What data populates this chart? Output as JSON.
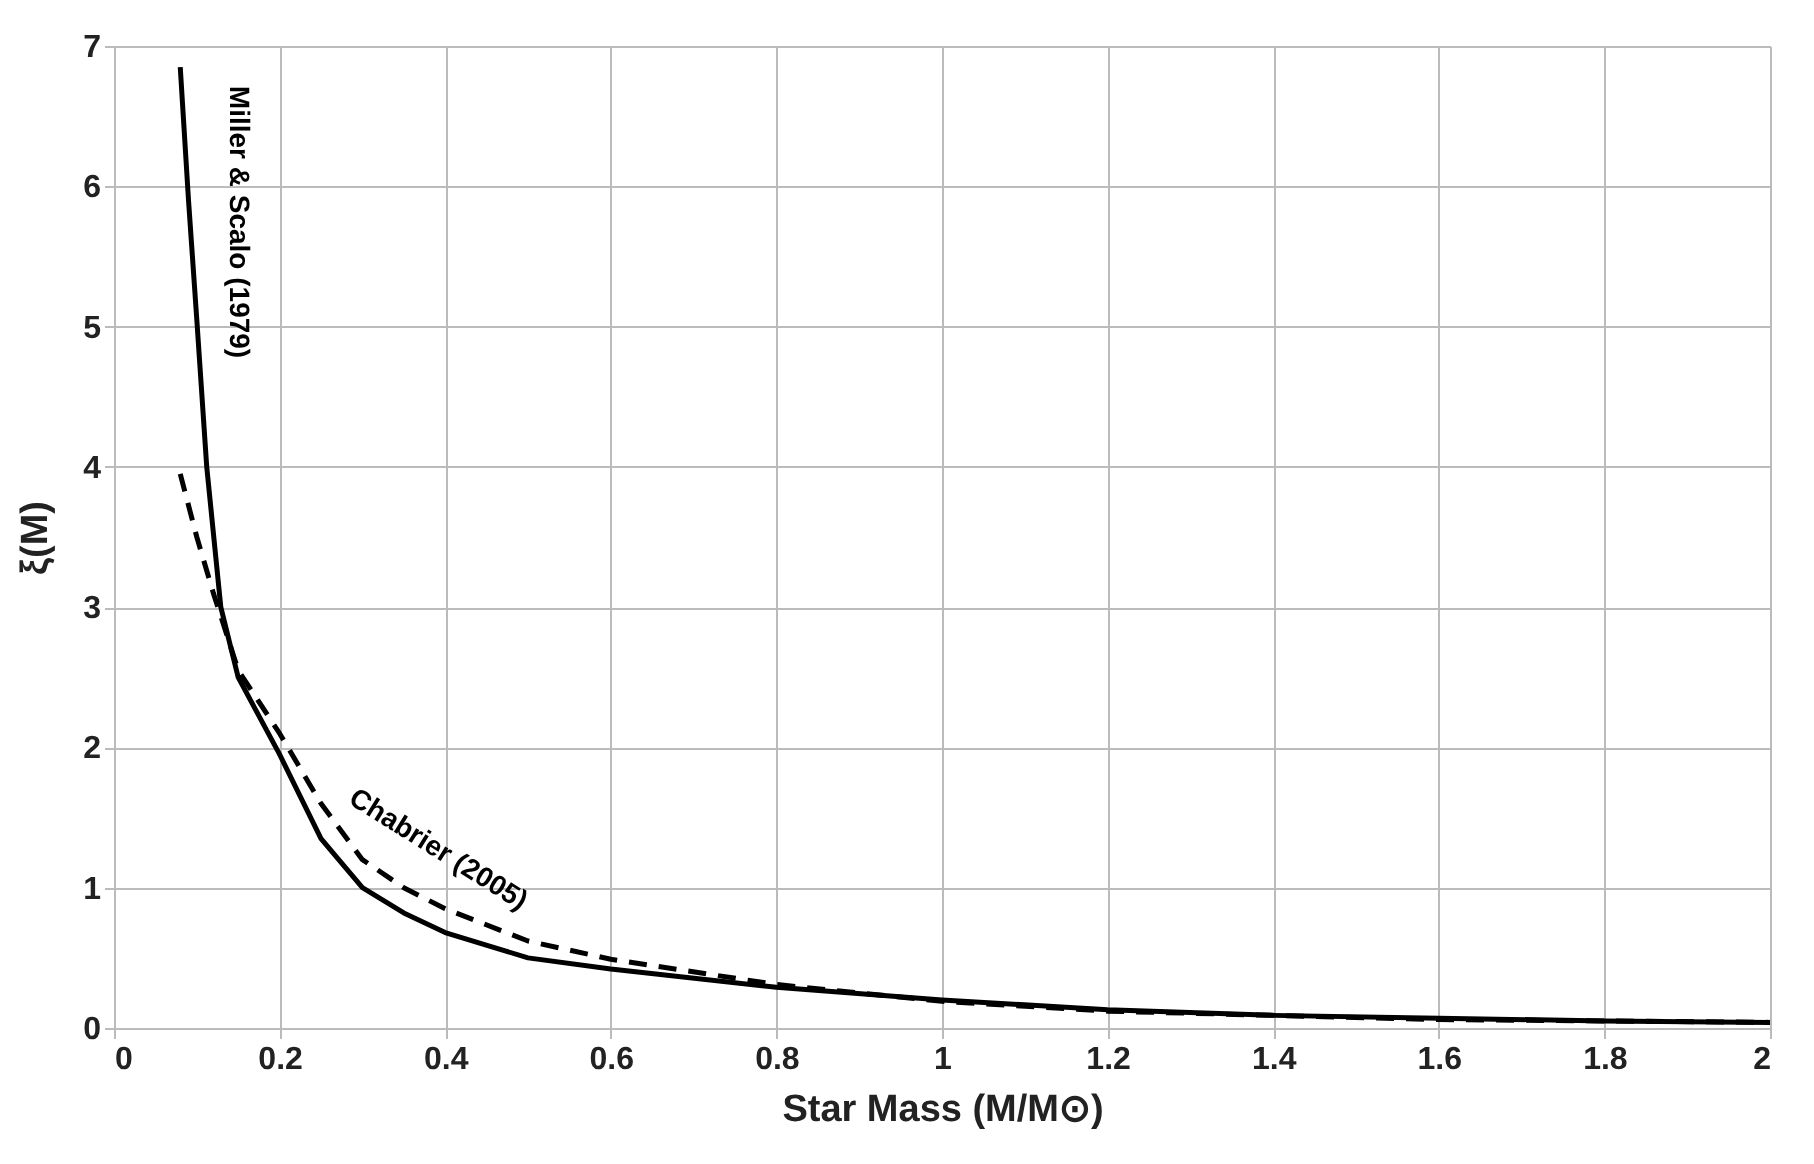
{
  "chart_data": {
    "type": "line",
    "xlabel": "Star Mass (M/M⊙)",
    "ylabel": "ξ(M)",
    "xlim": [
      0,
      2
    ],
    "xticks": [
      0,
      0.2,
      0.4,
      0.6,
      0.8,
      1,
      1.2,
      1.4,
      1.6,
      1.8,
      2
    ],
    "ylim": [
      0,
      7
    ],
    "yticks": [
      0,
      1,
      2,
      3,
      4,
      5,
      6,
      7
    ],
    "grid": true,
    "legend": false,
    "marker": "none",
    "series": [
      {
        "name": "Miller & Scalo (1979)",
        "color": "#000000",
        "line_style": "solid",
        "x": [
          0.08,
          0.09,
          0.1,
          0.112,
          0.129,
          0.15,
          0.2,
          0.25,
          0.3,
          0.35,
          0.4,
          0.5,
          0.6,
          0.8,
          1.0,
          1.2,
          1.4,
          1.6,
          1.8,
          2.0
        ],
        "values": [
          6.85,
          5.9,
          5.05,
          4.0,
          3.0,
          2.5,
          1.95,
          1.35,
          1.0,
          0.82,
          0.68,
          0.5,
          0.42,
          0.29,
          0.2,
          0.13,
          0.09,
          0.07,
          0.05,
          0.04
        ]
      },
      {
        "name": "Chabrier (2005)",
        "color": "#000000",
        "line_style": "dashed",
        "x": [
          0.08,
          0.1,
          0.12,
          0.15,
          0.2,
          0.25,
          0.3,
          0.35,
          0.4,
          0.5,
          0.6,
          0.8,
          1.0,
          1.2,
          1.4,
          1.6,
          1.8,
          2.0
        ],
        "values": [
          3.95,
          3.5,
          3.1,
          2.55,
          2.1,
          1.6,
          1.2,
          1.0,
          0.85,
          0.62,
          0.49,
          0.31,
          0.19,
          0.12,
          0.09,
          0.06,
          0.05,
          0.04
        ]
      }
    ]
  }
}
